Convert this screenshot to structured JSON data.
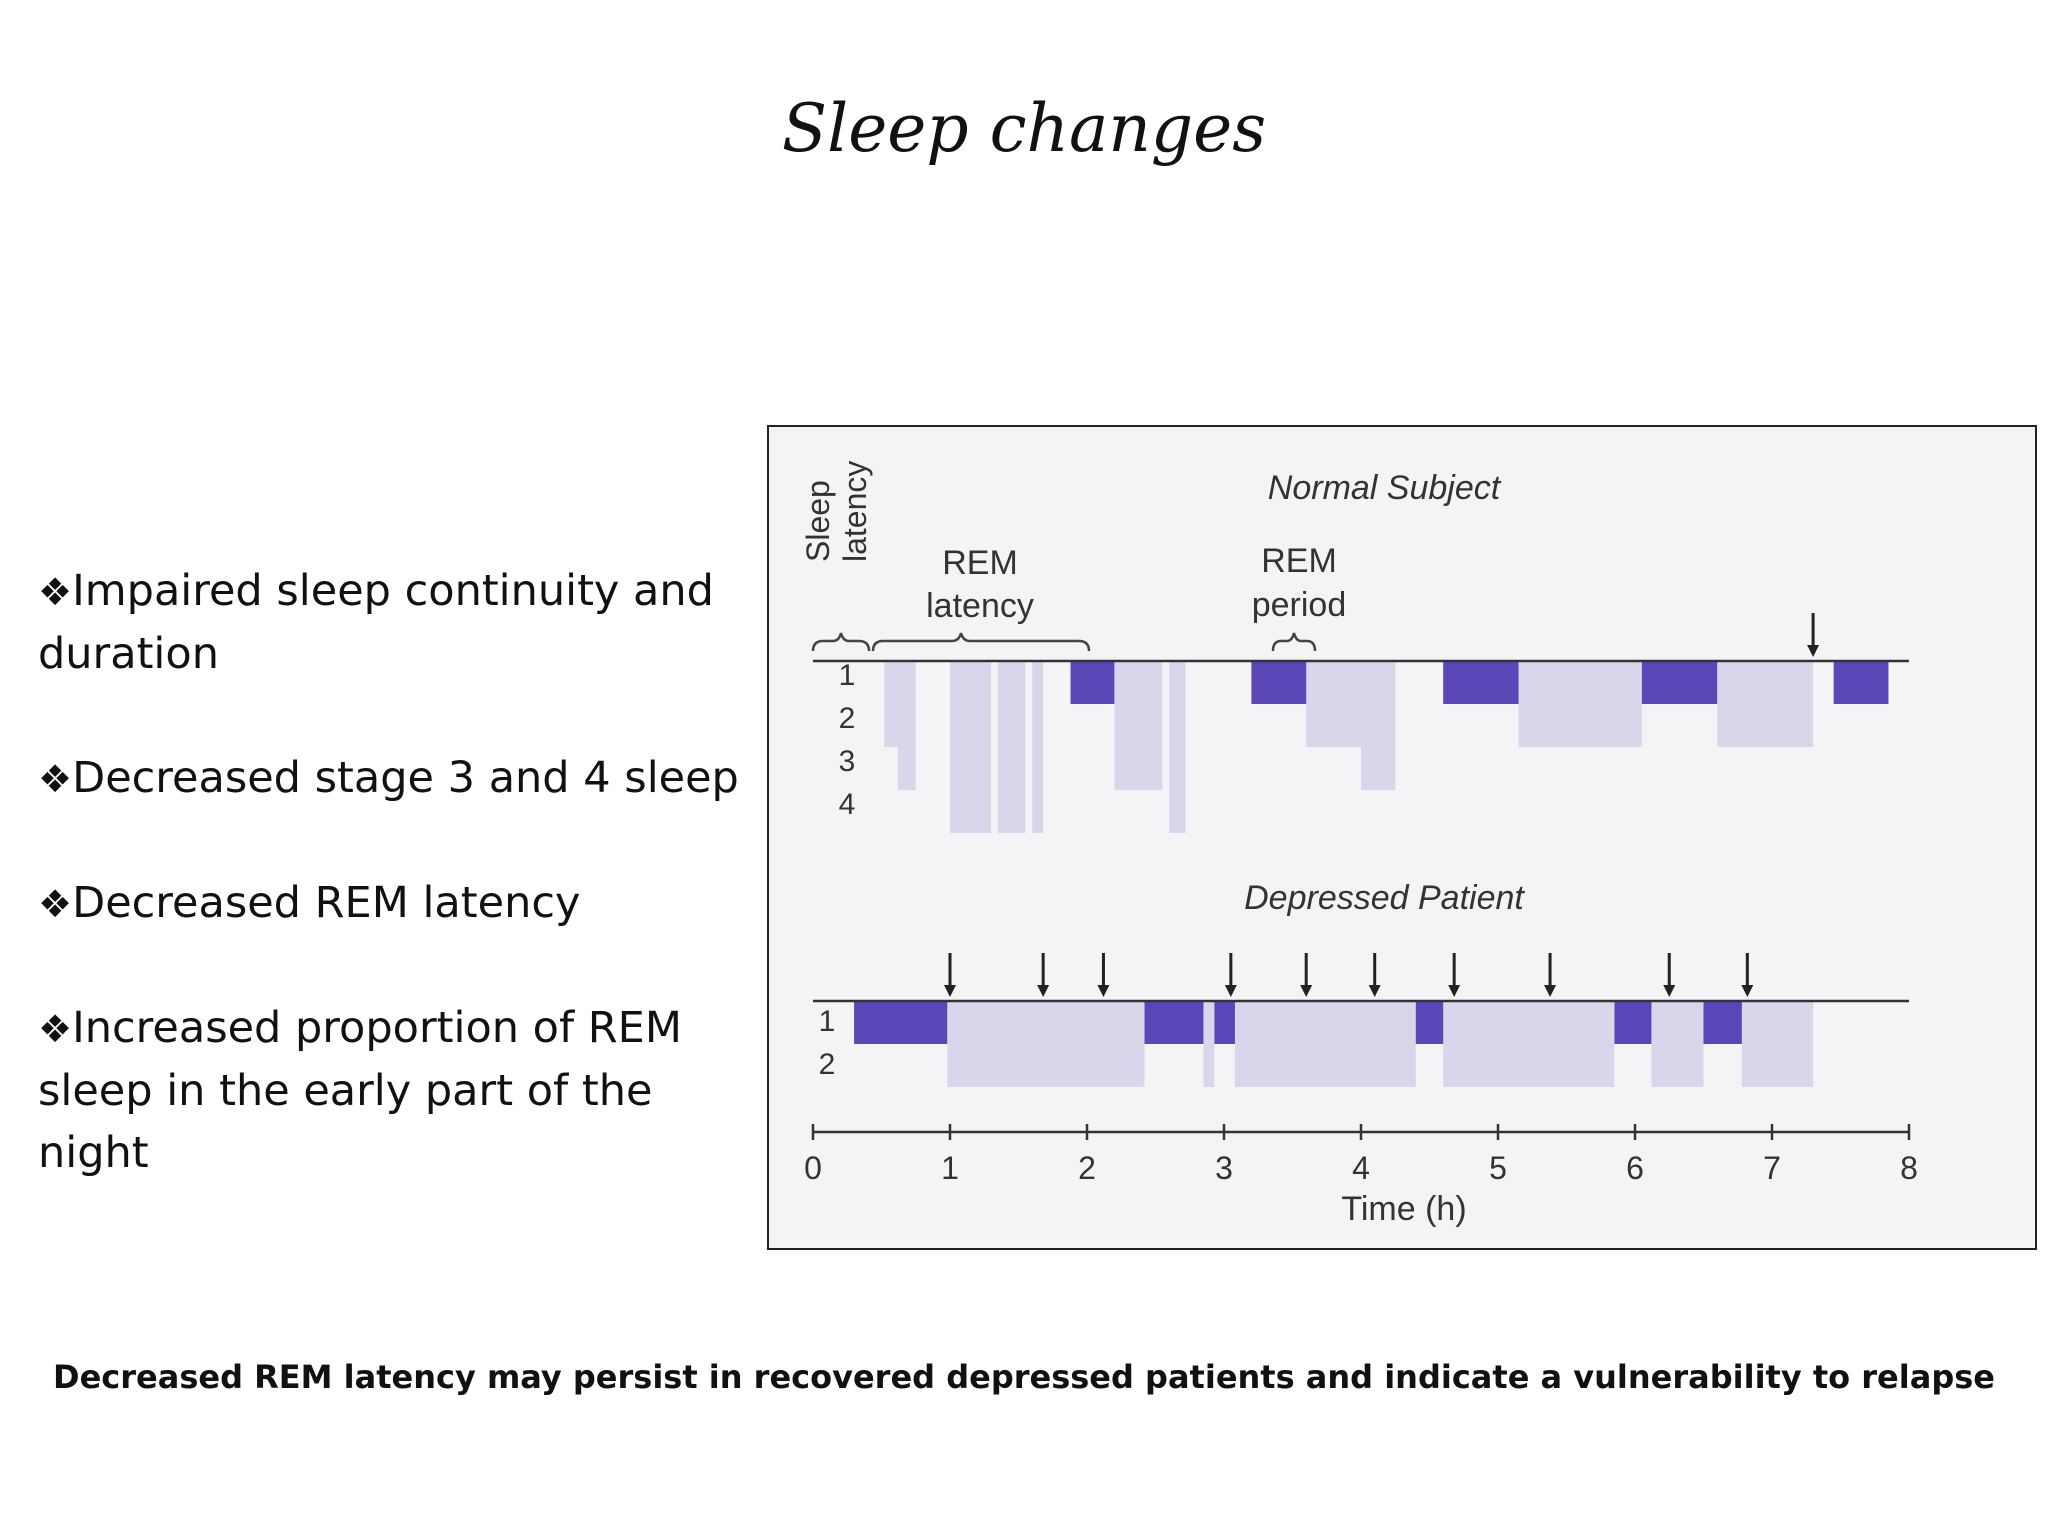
{
  "slide": {
    "title": "Sleep changes",
    "bullet_marker": "❖",
    "bullets": [
      "Impaired sleep continuity and duration",
      "Decreased stage 3 and 4 sleep",
      "Decreased REM latency",
      "Increased proportion of REM sleep in the early part of the night"
    ],
    "footer": "Decreased REM latency may persist in recovered depressed patients and indicate a vulnerability to relapse"
  },
  "figure": {
    "normal_title": "Normal Subject",
    "depressed_title": "Depressed Patient",
    "annotations": {
      "sleep_latency_line1": "Sleep",
      "sleep_latency_line2": "latency",
      "rem_latency_line1": "REM",
      "rem_latency_line2": "latency",
      "rem_period_line1": "REM",
      "rem_period_line2": "period"
    },
    "normal_stage_labels": [
      "1",
      "2",
      "3",
      "4"
    ],
    "depressed_stage_labels": [
      "1",
      "2"
    ],
    "x_axis_label": "Time (h)",
    "x_ticks": [
      "0",
      "1",
      "2",
      "3",
      "4",
      "5",
      "6",
      "7",
      "8"
    ],
    "colors": {
      "rem": "#5b46b8",
      "non_rem": "#d4d0ea",
      "axis": "#333333",
      "background": "#f4f4f6"
    }
  },
  "chart_data": [
    {
      "type": "bar",
      "title": "Normal Subject",
      "xlabel": "Time (h)",
      "xlim": [
        0,
        8
      ],
      "stages": [
        "1",
        "2",
        "3",
        "4"
      ],
      "rem_periods_h": [
        [
          1.88,
          2.2
        ],
        [
          3.2,
          3.6
        ],
        [
          4.6,
          5.15
        ],
        [
          6.05,
          6.6
        ],
        [
          7.45,
          7.85
        ]
      ],
      "non_rem_segments": [
        {
          "start": 0.52,
          "end": 0.62,
          "depth": 2
        },
        {
          "start": 0.62,
          "end": 0.75,
          "depth": 3
        },
        {
          "start": 1.0,
          "end": 1.3,
          "depth": 4
        },
        {
          "start": 1.35,
          "end": 1.55,
          "depth": 4
        },
        {
          "start": 1.6,
          "end": 1.68,
          "depth": 4
        },
        {
          "start": 2.2,
          "end": 2.55,
          "depth": 3
        },
        {
          "start": 2.6,
          "end": 2.72,
          "depth": 4
        },
        {
          "start": 3.6,
          "end": 4.0,
          "depth": 2
        },
        {
          "start": 4.0,
          "end": 4.25,
          "depth": 3
        },
        {
          "start": 5.15,
          "end": 6.05,
          "depth": 2
        },
        {
          "start": 6.6,
          "end": 7.3,
          "depth": 2
        }
      ],
      "awakenings_h": [
        7.3
      ]
    },
    {
      "type": "bar",
      "title": "Depressed Patient",
      "xlabel": "Time (h)",
      "xlim": [
        0,
        8
      ],
      "stages": [
        "1",
        "2"
      ],
      "rem_periods_h": [
        [
          0.3,
          0.98
        ],
        [
          2.42,
          2.85
        ],
        [
          2.93,
          3.08
        ],
        [
          4.4,
          4.6
        ],
        [
          5.85,
          6.12
        ],
        [
          6.5,
          6.78
        ]
      ],
      "awakenings_h": [
        1.0,
        1.68,
        2.12,
        3.05,
        3.6,
        4.1,
        4.68,
        5.38,
        6.25,
        6.82
      ]
    }
  ]
}
